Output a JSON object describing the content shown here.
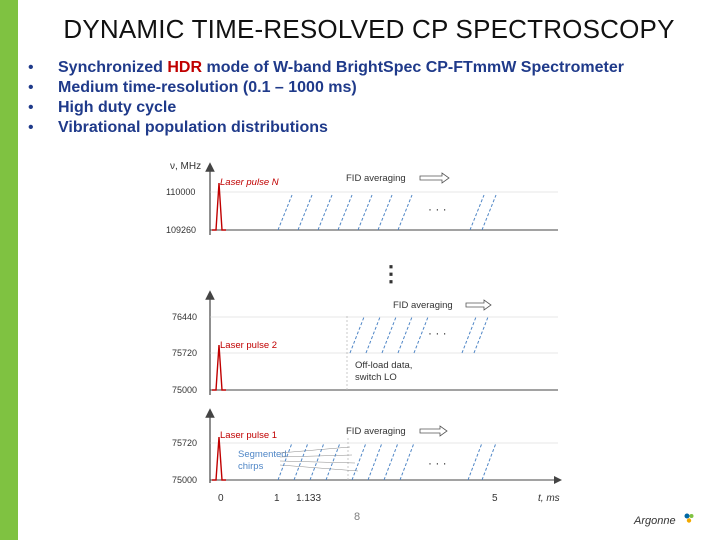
{
  "slide": {
    "title": "DYNAMIC TIME-RESOLVED CP SPECTROSCOPY",
    "page_number": "8",
    "logo_text": "Argonne",
    "accent_color": "#7fc241",
    "text_color": "#1f3a8a",
    "highlight_color": "#c00000"
  },
  "bullets": [
    {
      "marker": "•",
      "pre": "Synchronized ",
      "highlight": "HDR",
      "post": " mode of W-band BrightSpec CP-FTmmW Spectrometer"
    },
    {
      "marker": "•",
      "pre": "Medium time-resolution (0.1 – 1000 ms)",
      "highlight": "",
      "post": ""
    },
    {
      "marker": "•",
      "pre": "High duty cycle",
      "highlight": "",
      "post": ""
    },
    {
      "marker": "•",
      "pre": "Vibrational population distributions",
      "highlight": "",
      "post": ""
    }
  ],
  "diagram": {
    "y_axis_label": "ν, MHz",
    "x_axis_label": "t, ms",
    "x_ticks": [
      "0",
      "1",
      "1.133",
      "5"
    ],
    "top_panel": {
      "ticks": [
        "110000",
        "109260"
      ],
      "pulse_label": "Laser pulse N",
      "fid_label": "FID averaging",
      "ellipsis": "· · ·"
    },
    "middle_panel": {
      "ticks": [
        "76440",
        "75720",
        "75000"
      ],
      "pulse_label": "Laser pulse 2",
      "fid_label": "FID averaging",
      "offload_line1": "Off-load data,",
      "offload_line2": "switch LO",
      "ellipsis": "· · ·"
    },
    "bottom_panel": {
      "ticks": [
        "75720",
        "75000"
      ],
      "pulse_label": "Laser pulse 1",
      "fid_label": "FID averaging",
      "segmented_line1": "Segmented",
      "segmented_line2": "chirps",
      "ellipsis": "· · ·"
    },
    "vertical_ellipsis": "⋮",
    "chirp_color": "#4f86c6",
    "pulse_color": "#c00000"
  }
}
